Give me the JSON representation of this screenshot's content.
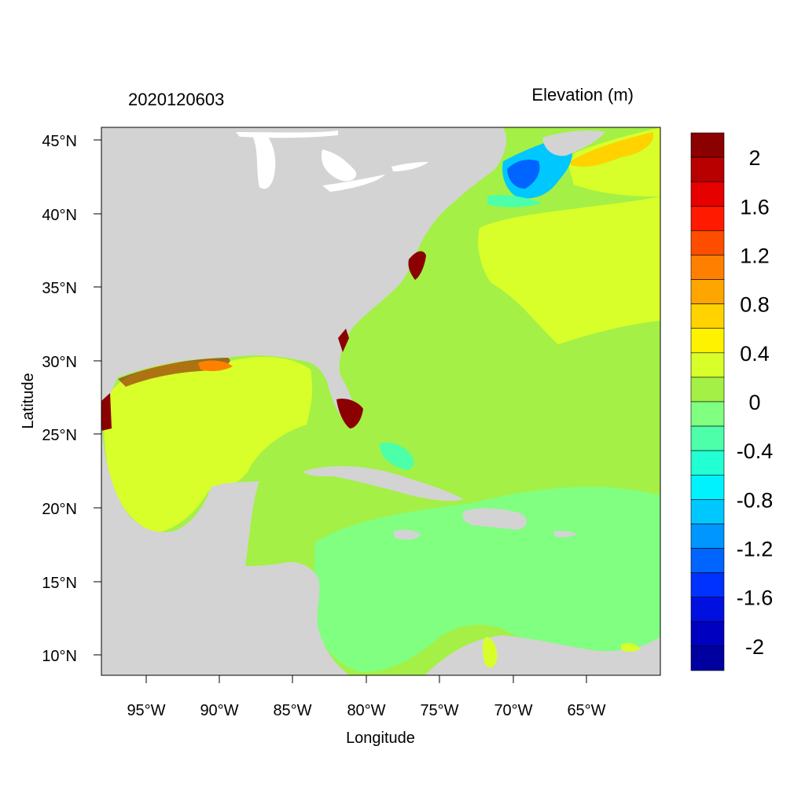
{
  "header": {
    "date_label": "2020120603",
    "variable_label": "Elevation (m)"
  },
  "axes": {
    "xlabel": "Longitude",
    "ylabel": "Latitude",
    "x_ticks": [
      "95°W",
      "90°W",
      "85°W",
      "80°W",
      "75°W",
      "70°W",
      "65°W"
    ],
    "y_ticks": [
      "45°N",
      "40°N",
      "35°N",
      "30°N",
      "25°N",
      "20°N",
      "15°N",
      "10°N"
    ]
  },
  "colors": {
    "land": "#d3d3d3",
    "lakes": "#ffffff",
    "surge_zero": "#a4f046",
    "surge_low": "#d8ff2a",
    "surge_neg": "#80ff80"
  },
  "legend": {
    "labels": [
      "2",
      "1.6",
      "1.2",
      "0.8",
      "0.4",
      "0",
      "-0.4",
      "-0.8",
      "-1.2",
      "-1.6",
      "-2"
    ],
    "colors": [
      "#8b0000",
      "#b80000",
      "#e60000",
      "#ff1a00",
      "#ff4d00",
      "#ff8000",
      "#ffa500",
      "#ffd200",
      "#fff200",
      "#d8ff2a",
      "#a4f046",
      "#80ff80",
      "#4cffa8",
      "#22ffd2",
      "#00f2ff",
      "#00c8ff",
      "#0096ff",
      "#0064ff",
      "#0032ff",
      "#0010e0",
      "#0000c0",
      "#0000a0"
    ]
  }
}
